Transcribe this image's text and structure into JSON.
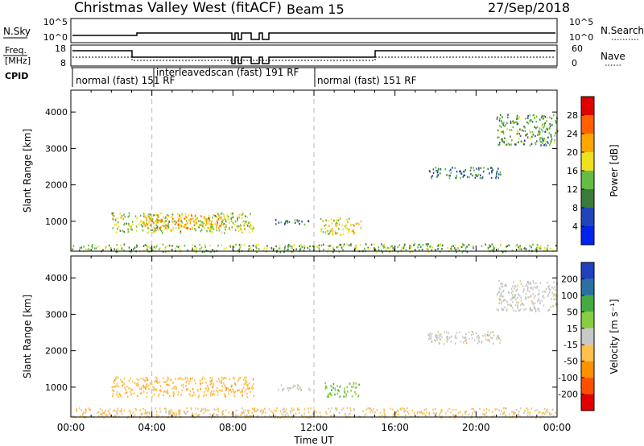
{
  "header": {
    "station": "Christmas Valley West (fitACF)",
    "beam": "Beam 15",
    "date": "27/Sep/2018"
  },
  "strip_panels": {
    "nsky_label": "N.Sky",
    "nsky_ticks": [
      "10^5",
      "10^0"
    ],
    "nsearch_label": "N.Search",
    "nsearch_ticks": [
      "10^5",
      "10^0"
    ],
    "freq_label_1": "Freq.",
    "freq_label_2": "[MHz]",
    "freq_ticks": [
      "18",
      "8"
    ],
    "nave_label": "Nave",
    "nave_ticks": [
      "60",
      "0"
    ],
    "cpid_label": "CPID",
    "cpid_segments": [
      {
        "label": "normal (fast)  151 RF",
        "start_hour": 0.0,
        "end_hour": 4.0
      },
      {
        "label": "interleavedscan (fast)  191 RF",
        "start_hour": 4.0,
        "end_hour": 12.0
      },
      {
        "label": "normal (fast)  151 RF",
        "start_hour": 12.0,
        "end_hour": 24.0
      }
    ]
  },
  "colors": {
    "power_scale": [
      "#0022ee",
      "#2244bb",
      "#3c7a3c",
      "#66bb44",
      "#f0e020",
      "#ffa500",
      "#ff6000",
      "#e00000"
    ],
    "velocity_scale": [
      "#e00000",
      "#ff5000",
      "#ff9000",
      "#ffc04d",
      "#c8c8c8",
      "#88cc44",
      "#44aa44",
      "#2a70a0",
      "#2040c0"
    ],
    "gridline": "#bbbbbb"
  },
  "chart_data": [
    {
      "type": "heatmap",
      "name": "power",
      "xlabel": "",
      "ylabel": "Slant Range [km]",
      "x_ticks": [
        "00:00",
        "04:00",
        "08:00",
        "12:00",
        "16:00",
        "20:00",
        "00:00"
      ],
      "x_range_hours": [
        0,
        24
      ],
      "y_ticks": [
        1000,
        2000,
        3000,
        4000
      ],
      "ylim": [
        180,
        4600
      ],
      "colorbar": {
        "label": "Power [dB]",
        "ticks": [
          "4",
          "8",
          "12",
          "16",
          "20",
          "24",
          "28"
        ],
        "range": [
          0,
          32
        ]
      },
      "scatter_regions": [
        {
          "hours": [
            2.0,
            9.0
          ],
          "range_km": [
            700,
            1250
          ],
          "value": 16
        },
        {
          "hours": [
            3.5,
            7.5
          ],
          "range_km": [
            800,
            1200
          ],
          "value": 22
        },
        {
          "hours": [
            12.3,
            14.3
          ],
          "range_km": [
            650,
            1100
          ],
          "value": 18
        },
        {
          "hours": [
            17.6,
            21.2
          ],
          "range_km": [
            2200,
            2500
          ],
          "value": 10
        },
        {
          "hours": [
            21.0,
            24.0
          ],
          "range_km": [
            3100,
            3950
          ],
          "value": 12
        },
        {
          "hours": [
            0.0,
            24.0
          ],
          "range_km": [
            180,
            400
          ],
          "value": 14
        },
        {
          "hours": [
            10.0,
            11.8
          ],
          "range_km": [
            930,
            1080
          ],
          "value": 9
        }
      ]
    },
    {
      "type": "heatmap",
      "name": "velocity",
      "xlabel": "Time UT",
      "ylabel": "Slant Range [km]",
      "x_ticks": [
        "00:00",
        "04:00",
        "08:00",
        "12:00",
        "16:00",
        "20:00",
        "00:00"
      ],
      "x_range_hours": [
        0,
        24
      ],
      "y_ticks": [
        1000,
        2000,
        3000,
        4000
      ],
      "ylim": [
        180,
        4600
      ],
      "colorbar": {
        "label": "Velocity [m s⁻¹]",
        "ticks": [
          "-200",
          "-100",
          "-50",
          "-15",
          "15",
          "50",
          "100",
          "200"
        ],
        "range": [
          -250,
          250
        ]
      },
      "scatter_regions": [
        {
          "hours": [
            2.0,
            9.0
          ],
          "range_km": [
            750,
            1300
          ],
          "value": -60
        },
        {
          "hours": [
            12.5,
            14.2
          ],
          "range_km": [
            750,
            1150
          ],
          "value": 60
        },
        {
          "hours": [
            17.6,
            21.2
          ],
          "range_km": [
            2200,
            2550
          ],
          "value": 0
        },
        {
          "hours": [
            21.0,
            24.0
          ],
          "range_km": [
            3100,
            3950
          ],
          "value": 0
        },
        {
          "hours": [
            0.0,
            24.0
          ],
          "range_km": [
            180,
            450
          ],
          "value": -40
        },
        {
          "hours": [
            10.0,
            11.8
          ],
          "range_km": [
            930,
            1080
          ],
          "value": 0
        }
      ]
    }
  ]
}
